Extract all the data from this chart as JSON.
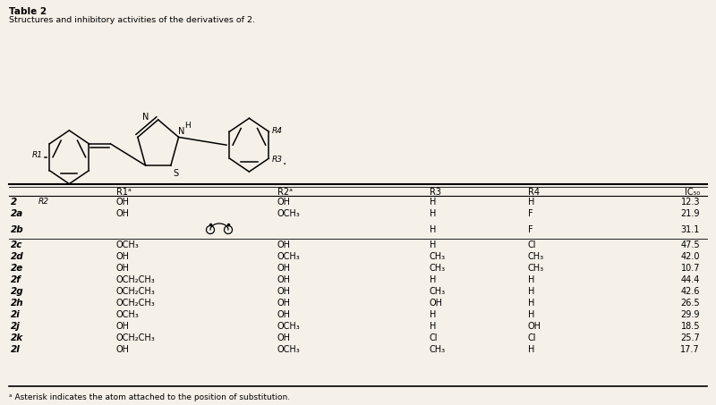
{
  "title": "Table 2",
  "subtitle": "Structures and inhibitory activities of the derivatives of 2.",
  "rows": [
    [
      "2",
      "OH",
      "OH",
      "H",
      "H",
      "12.3"
    ],
    [
      "2a",
      "OH",
      "OCH₃",
      "H",
      "F",
      "21.9"
    ],
    [
      "2b",
      "",
      "",
      "H",
      "F",
      "31.1"
    ],
    [
      "2c",
      "OCH₃",
      "OH",
      "H",
      "Cl",
      "47.5"
    ],
    [
      "2d",
      "OH",
      "OCH₃",
      "CH₃",
      "CH₃",
      "42.0"
    ],
    [
      "2e",
      "OH",
      "OH",
      "CH₃",
      "CH₃",
      "10.7"
    ],
    [
      "2f",
      "OCH₂CH₃",
      "OH",
      "H",
      "H",
      "44.4"
    ],
    [
      "2g",
      "OCH₂CH₃",
      "OH",
      "CH₃",
      "H",
      "42.6"
    ],
    [
      "2h",
      "OCH₂CH₃",
      "OH",
      "OH",
      "H",
      "26.5"
    ],
    [
      "2i",
      "OCH₃",
      "OH",
      "H",
      "H",
      "29.9"
    ],
    [
      "2j",
      "OH",
      "OCH₃",
      "H",
      "OH",
      "18.5"
    ],
    [
      "2k",
      "OCH₂CH₃",
      "OH",
      "Cl",
      "Cl",
      "25.7"
    ],
    [
      "2l",
      "OH",
      "OCH₃",
      "CH₃",
      "H",
      "17.7"
    ]
  ],
  "footnote": "ᵃ Asterisk indicates the atom attached to the position of substitution.",
  "bg_color": "#f5f0e8"
}
